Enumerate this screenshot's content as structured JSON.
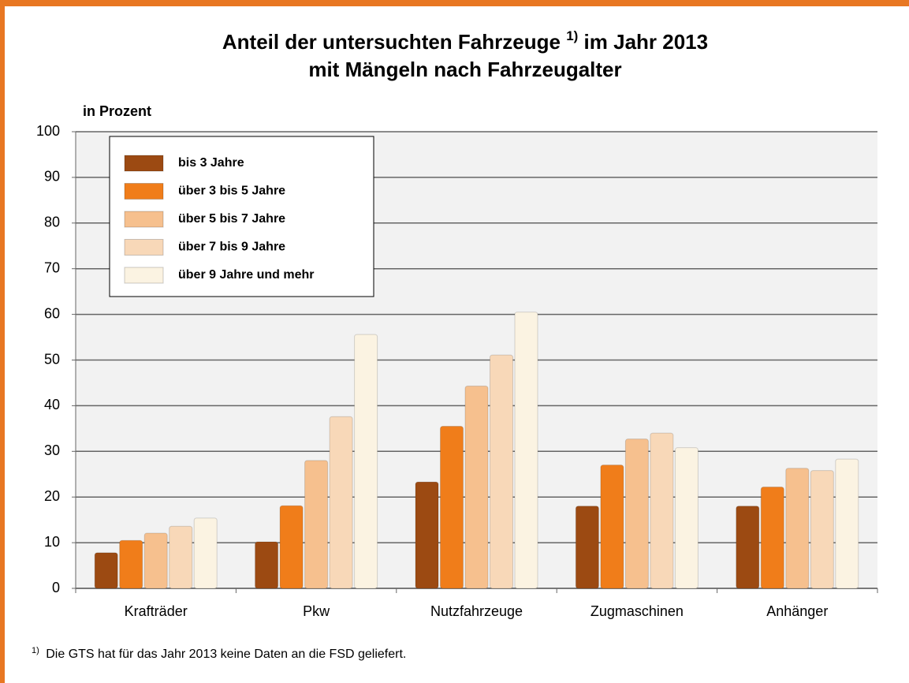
{
  "chart_data": {
    "type": "bar",
    "title": [
      "Anteil der untersuchten Fahrzeuge",
      "1)",
      "im Jahr 2013",
      "mit Mängeln nach Fahrzeugalter"
    ],
    "y_label": "in Prozent",
    "categories": [
      "Krafträder",
      "Pkw",
      "Nutzfahrzeuge",
      "Zugmaschinen",
      "Anhänger"
    ],
    "series": [
      {
        "name": "bis 3 Jahre",
        "color": "#9c4a12",
        "values": [
          7.8,
          10.2,
          23.3,
          18,
          18
        ]
      },
      {
        "name": "über 3 bis 5 Jahre",
        "color": "#f07d1a",
        "values": [
          10.5,
          18.1,
          35.5,
          27,
          22.2
        ]
      },
      {
        "name": "über 5 bis 7 Jahre",
        "color": "#f6c08e",
        "values": [
          12.1,
          28,
          44.3,
          32.7,
          26.3
        ]
      },
      {
        "name": "über 7 bis 9 Jahre",
        "color": "#f8d8b8",
        "values": [
          13.6,
          37.6,
          51.1,
          34,
          25.8
        ]
      },
      {
        "name": "über 9 Jahre und mehr",
        "color": "#fbf3e2",
        "values": [
          15.4,
          55.6,
          60.5,
          30.8,
          28.3
        ]
      }
    ],
    "ylim": [
      0,
      100
    ],
    "yticks": [
      0,
      10,
      20,
      30,
      40,
      50,
      60,
      70,
      80,
      90,
      100
    ],
    "grid": true,
    "legend": "top-left",
    "footnote": {
      "marker": "1)",
      "text": "Die GTS hat für das Jahr 2013 keine Daten an die FSD geliefert."
    }
  }
}
